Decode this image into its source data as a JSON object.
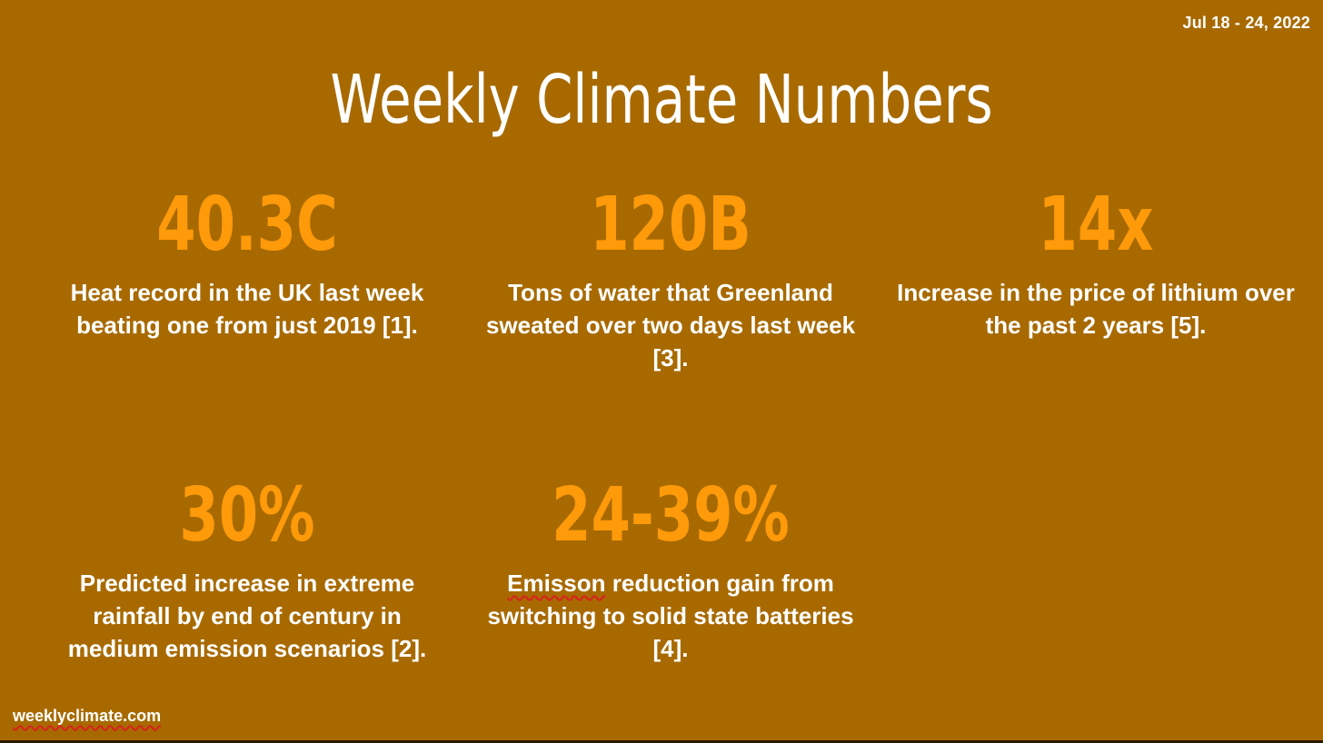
{
  "header": {
    "date_range": "Jul 18 - 24, 2022",
    "title": "Weekly Climate Numbers"
  },
  "stats": [
    {
      "value": "40.3C",
      "description": "Heat record in the UK last week beating one from just 2019 [1]."
    },
    {
      "value": "120B",
      "description": "Tons of water that Greenland sweated over two days last week [3]."
    },
    {
      "value": "14x",
      "description": "Increase in the price of lithium over the past 2 years [5]."
    },
    {
      "value": "30%",
      "description": "Predicted increase in extreme rainfall by end of century in medium emission scenarios [2]."
    },
    {
      "value": "24-39%",
      "description_flagged_word": "Emisson",
      "description_rest": " reduction gain from switching to solid state batteries [4]."
    }
  ],
  "footer": {
    "site": "weeklyclimate.com"
  },
  "colors": {
    "background": "#a86a00",
    "stat_value": "#ff9a0a",
    "text": "#ffffff",
    "spellcheck_underline": "#d92020"
  }
}
